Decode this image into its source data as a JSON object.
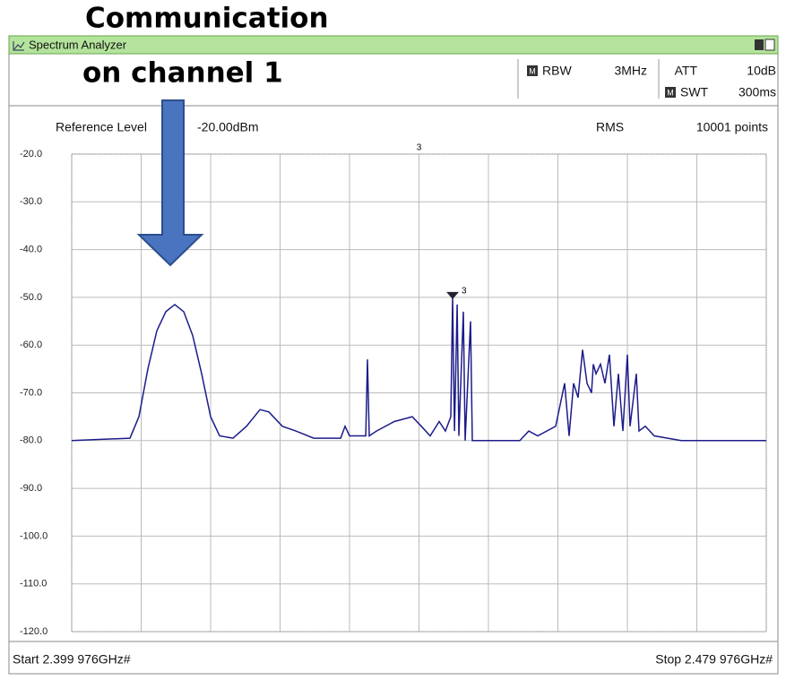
{
  "window": {
    "title": "Spectrum Analyzer"
  },
  "settings": {
    "rbw_label": "RBW",
    "rbw": "3MHz",
    "att_label": "ATT",
    "att": "10dB",
    "swt_label": "SWT",
    "swt": "300ms",
    "m_icon": "M",
    "ref_label": "Reference Level",
    "ref_value": "-20.00dBm",
    "detector": "RMS",
    "points": "10001 points",
    "start": "Start 2.399 976GHz#",
    "stop": "Stop 2.479 976GHz#"
  },
  "chart_data": {
    "type": "line",
    "annotations": [
      "Communication",
      "on channel 1"
    ],
    "xlim": [
      2.399976,
      2.479976
    ],
    "xticks": [
      2.399976,
      2.407976,
      2.415976,
      2.423976,
      2.431976,
      2.439976,
      2.447976,
      2.455976,
      2.463976,
      2.471976,
      2.479976
    ],
    "ylim": [
      -120,
      -20
    ],
    "yticks": [
      {
        "value": -20,
        "label": "-20.0"
      },
      {
        "value": -30,
        "label": "-30.0"
      },
      {
        "value": -40,
        "label": "-40.0"
      },
      {
        "value": -50,
        "label": "-50.0"
      },
      {
        "value": -60,
        "label": "-60.0"
      },
      {
        "value": -70,
        "label": "-70.0"
      },
      {
        "value": -80,
        "label": "-80.0"
      },
      {
        "value": -90,
        "label": "-90.0"
      },
      {
        "value": -100,
        "label": "-100.0"
      },
      {
        "value": -110,
        "label": "-110.0"
      },
      {
        "value": -120,
        "label": "-120.0"
      }
    ],
    "grid": true,
    "marker": {
      "label": "3",
      "x": 2.44385,
      "y": -50
    },
    "series": [
      {
        "color": "#1c1c8a",
        "x": [
          2.399976,
          2.40669,
          2.40772,
          2.40875,
          2.40978,
          2.41081,
          2.41185,
          2.41288,
          2.41391,
          2.41494,
          2.41598,
          2.41701,
          2.41856,
          2.42011,
          2.42166,
          2.42269,
          2.42424,
          2.42579,
          2.42785,
          2.43095,
          2.43146,
          2.43198,
          2.43384,
          2.43404,
          2.43425,
          2.43508,
          2.43714,
          2.4392,
          2.44024,
          2.44127,
          2.4423,
          2.44302,
          2.44364,
          2.44385,
          2.44406,
          2.44437,
          2.44457,
          2.44509,
          2.44529,
          2.44591,
          2.44612,
          2.44746,
          2.45159,
          2.45262,
          2.45365,
          2.45572,
          2.45675,
          2.45727,
          2.45778,
          2.4583,
          2.45881,
          2.45933,
          2.45985,
          2.46005,
          2.46036,
          2.46088,
          2.4614,
          2.46191,
          2.46243,
          2.46294,
          2.46346,
          2.46398,
          2.46429,
          2.46501,
          2.46532,
          2.46604,
          2.46707,
          2.47017,
          2.479976
        ],
        "values": [
          -80,
          -79.5,
          -75,
          -65,
          -57,
          -53,
          -51.5,
          -53,
          -58,
          -66,
          -75,
          -79,
          -79.5,
          -77,
          -73.5,
          -74,
          -77,
          -78,
          -79.5,
          -79.5,
          -77,
          -79,
          -79,
          -63,
          -79,
          -78,
          -76,
          -75,
          -77,
          -79,
          -76,
          -78,
          -75,
          -50,
          -78,
          -51.5,
          -79,
          -53,
          -80,
          -55,
          -80,
          -80,
          -80,
          -78,
          -79,
          -77,
          -68,
          -79,
          -68,
          -71,
          -61,
          -68,
          -70,
          -64,
          -66,
          -64,
          -68,
          -62,
          -77,
          -66,
          -78,
          -62,
          -77,
          -66,
          -78,
          -77,
          -79,
          -80,
          -80
        ]
      }
    ]
  }
}
